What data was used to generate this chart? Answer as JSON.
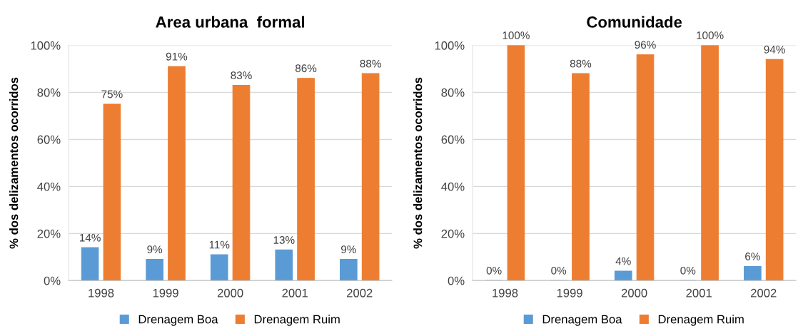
{
  "chart_data": [
    {
      "type": "bar",
      "title": "Area urbana  formal",
      "ylabel": "% dos delizamentos ocorridos",
      "categories": [
        "1998",
        "1999",
        "2000",
        "2001",
        "2002"
      ],
      "series": [
        {
          "name": "Drenagem Boa",
          "color": "#5b9bd5",
          "values": [
            14,
            9,
            11,
            13,
            9
          ],
          "value_labels": [
            "14%",
            "9%",
            "11%",
            "13%",
            "9%"
          ]
        },
        {
          "name": "Drenagem Ruim",
          "color": "#ed7d31",
          "values": [
            75,
            91,
            83,
            86,
            88
          ],
          "value_labels": [
            "75%",
            "91%",
            "83%",
            "86%",
            "88%"
          ]
        }
      ],
      "ylim": [
        0,
        100
      ],
      "yticks": [
        {
          "value": 0,
          "label": "0%"
        },
        {
          "value": 20,
          "label": "20%"
        },
        {
          "value": 40,
          "label": "40%"
        },
        {
          "value": 60,
          "label": "60%"
        },
        {
          "value": 80,
          "label": "80%"
        },
        {
          "value": 100,
          "label": "100%"
        }
      ],
      "grid": "y",
      "legend": "bottom"
    },
    {
      "type": "bar",
      "title": "Comunidade",
      "ylabel": "% dos delizamentos ocorridos",
      "categories": [
        "1998",
        "1999",
        "2000",
        "2001",
        "2002"
      ],
      "series": [
        {
          "name": "Drenagem Boa",
          "color": "#5b9bd5",
          "values": [
            0,
            0,
            4,
            0,
            6
          ],
          "value_labels": [
            "0%",
            "0%",
            "4%",
            "0%",
            "6%"
          ]
        },
        {
          "name": "Drenagem Ruim",
          "color": "#ed7d31",
          "values": [
            100,
            88,
            96,
            100,
            94
          ],
          "value_labels": [
            "100%",
            "88%",
            "96%",
            "100%",
            "94%"
          ]
        }
      ],
      "ylim": [
        0,
        100
      ],
      "yticks": [
        {
          "value": 0,
          "label": "0%"
        },
        {
          "value": 20,
          "label": "20%"
        },
        {
          "value": 40,
          "label": "40%"
        },
        {
          "value": 60,
          "label": "60%"
        },
        {
          "value": 80,
          "label": "80%"
        },
        {
          "value": 100,
          "label": "100%"
        }
      ],
      "grid": "y",
      "legend": "bottom"
    }
  ]
}
